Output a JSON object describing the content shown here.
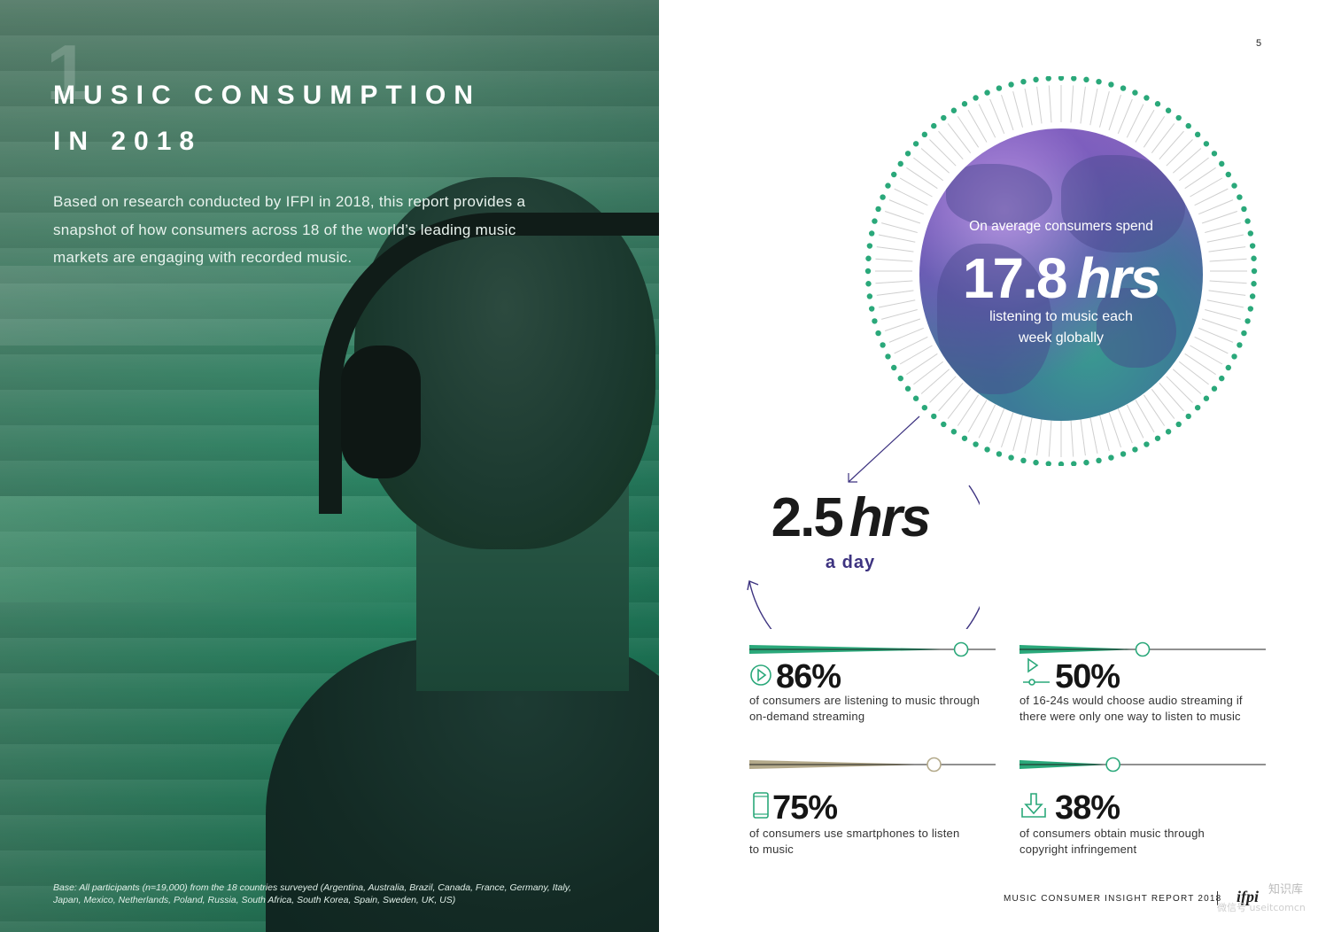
{
  "page_number": "5",
  "left": {
    "section_number": "1",
    "title_line1": "MUSIC CONSUMPTION",
    "title_line2": "IN 2018",
    "intro": "Based on research conducted by IFPI in 2018, this report provides a snapshot of how consumers across 18 of the world’s leading music markets are engaging with recorded music.",
    "base_note": "Base: All participants (n=19,000) from the 18 countries surveyed (Argentina, Australia, Brazil, Canada, France, Germany, Italy, Japan, Mexico, Netherlands, Poland, Russia, South Africa, South Korea, Spain, Sweden, UK, US)"
  },
  "globe": {
    "lead": "On average consumers spend",
    "value": "17.8",
    "unit": "hrs",
    "sub_line1": "listening to music each",
    "sub_line2": "week globally",
    "dot_color": "#2aa87a"
  },
  "day": {
    "value": "2.5",
    "unit": "hrs",
    "label": "a day",
    "accent": "#3d3380"
  },
  "stats": [
    {
      "icon": "play-circle-icon",
      "value": "86%",
      "desc_line1": "of consumers are listening to music through",
      "desc_line2": "on-demand streaming",
      "color": "#2aa87a",
      "fraction": 0.86
    },
    {
      "icon": "play-slider-icon",
      "value": "50%",
      "desc_line1": "of 16-24s would choose audio streaming if",
      "desc_line2": "there were only one way to listen to music",
      "color": "#2aa87a",
      "fraction": 0.5
    },
    {
      "icon": "smartphone-icon",
      "value": "75%",
      "desc_line1": "of consumers use smartphones to listen",
      "desc_line2": "to music",
      "color": "#b3a98a",
      "fraction": 0.75
    },
    {
      "icon": "download-icon",
      "value": "38%",
      "desc_line1": "of consumers obtain music through",
      "desc_line2": "copyright infringement",
      "color": "#2aa87a",
      "fraction": 0.38
    }
  ],
  "footer": {
    "report": "MUSIC CONSUMER INSIGHT REPORT 2018",
    "logo": "ifpi",
    "watermark1": "知识库",
    "watermark2": "微信号 useitcomcn"
  }
}
